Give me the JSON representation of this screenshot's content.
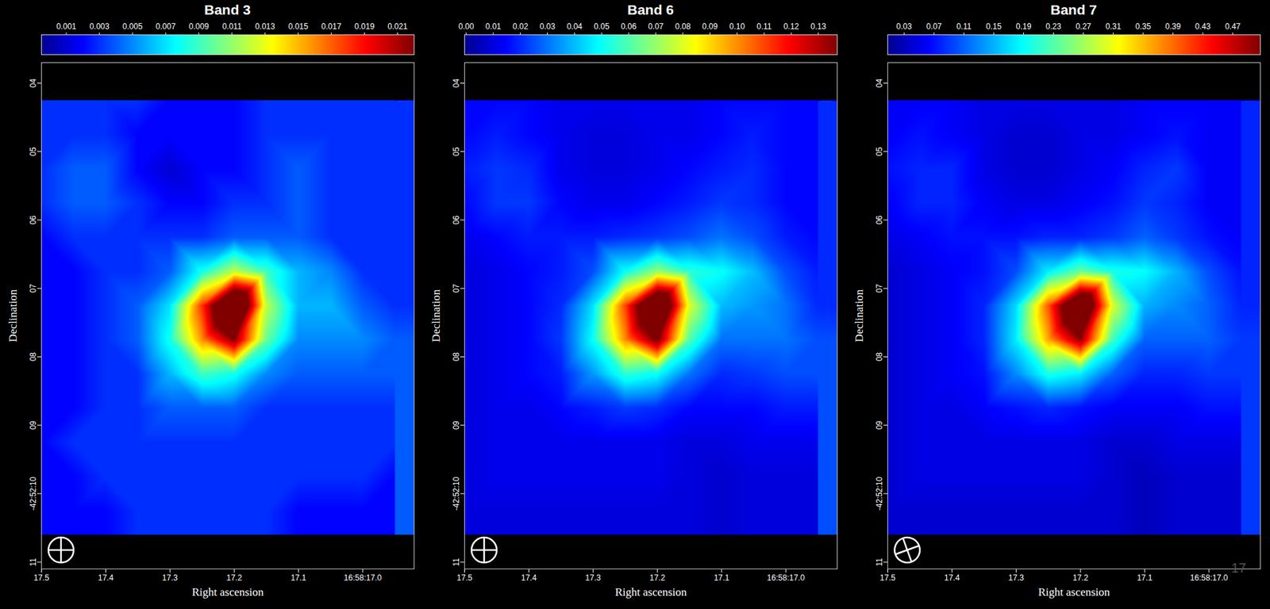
{
  "page_number": "17",
  "chart_data": [
    {
      "type": "heatmap",
      "title": "Band 3",
      "x_label": "Right ascension",
      "y_label": "Declination",
      "xlim": [
        17.5,
        16.92
      ],
      "ylim": [
        11.1,
        3.7
      ],
      "xticks": [
        17.5,
        17.4,
        17.3,
        17.2,
        17.1,
        {
          "value": 17.0,
          "label": "16:58:17.0"
        }
      ],
      "yticks": [
        {
          "value": 4,
          "label": "04"
        },
        {
          "value": 5,
          "label": "05"
        },
        {
          "value": 6,
          "label": "06"
        },
        {
          "value": 7,
          "label": "07"
        },
        {
          "value": 8,
          "label": "08"
        },
        {
          "value": 9,
          "label": "09"
        },
        {
          "value": 10,
          "label": "-42:52:10"
        },
        11
      ],
      "cells": {
        "ra": [
          17.5,
          17.45,
          17.4,
          17.35,
          17.3,
          17.25,
          17.2,
          17.15,
          17.1,
          17.05,
          17.0,
          16.95
        ],
        "dec": [
          4.25,
          4.75,
          5.25,
          5.75,
          6.25,
          6.75,
          7.25,
          7.75,
          8.25,
          8.75,
          9.25,
          9.75,
          10.25,
          10.6
        ],
        "values": [
          [
            0.003,
            0.003,
            0.003,
            0.003,
            0.002,
            0.002,
            0.002,
            0.003,
            0.003,
            0.003,
            0.003,
            0.003
          ],
          [
            0.003,
            0.003,
            0.003,
            0.002,
            0.002,
            0.002,
            0.002,
            0.003,
            0.003,
            0.003,
            0.003,
            0.003
          ],
          [
            0.003,
            0.004,
            0.004,
            0.002,
            0.001,
            0.002,
            0.002,
            0.003,
            0.004,
            0.003,
            0.003,
            0.003
          ],
          [
            0.003,
            0.004,
            0.004,
            0.003,
            0.002,
            0.002,
            0.003,
            0.003,
            0.004,
            0.003,
            0.003,
            0.003
          ],
          [
            0.002,
            0.003,
            0.003,
            0.003,
            0.003,
            0.003,
            0.004,
            0.004,
            0.004,
            0.003,
            0.003,
            0.003
          ],
          [
            0.002,
            0.002,
            0.003,
            0.003,
            0.004,
            0.008,
            0.012,
            0.009,
            0.006,
            0.005,
            0.003,
            0.003
          ],
          [
            0.002,
            0.002,
            0.003,
            0.004,
            0.007,
            0.018,
            0.03,
            0.012,
            0.006,
            0.006,
            0.004,
            0.003
          ],
          [
            0.002,
            0.002,
            0.003,
            0.004,
            0.008,
            0.016,
            0.022,
            0.01,
            0.005,
            0.005,
            0.005,
            0.004
          ],
          [
            0.002,
            0.002,
            0.003,
            0.003,
            0.006,
            0.009,
            0.008,
            0.005,
            0.004,
            0.004,
            0.004,
            0.004
          ],
          [
            0.002,
            0.002,
            0.003,
            0.003,
            0.004,
            0.004,
            0.004,
            0.003,
            0.003,
            0.003,
            0.003,
            0.003
          ],
          [
            0.002,
            0.003,
            0.003,
            0.003,
            0.003,
            0.003,
            0.003,
            0.003,
            0.003,
            0.003,
            0.003,
            0.003
          ],
          [
            0.002,
            0.002,
            0.003,
            0.003,
            0.003,
            0.003,
            0.003,
            0.003,
            0.003,
            0.003,
            0.003,
            0.002
          ],
          [
            0.002,
            0.002,
            0.002,
            0.003,
            0.003,
            0.003,
            0.003,
            0.003,
            0.002,
            0.002,
            0.002,
            0.002
          ],
          [
            0.002,
            0.002,
            0.002,
            0.003,
            0.003,
            0.003,
            0.003,
            0.003,
            0.002,
            0.002,
            0.002,
            0.002
          ]
        ]
      },
      "colorbar": {
        "range": [
          -0.0005,
          0.022
        ],
        "ticks": [
          0.001,
          0.003,
          0.005,
          0.007,
          0.009,
          0.011,
          0.013,
          0.015,
          0.017,
          0.019,
          0.021
        ]
      }
    },
    {
      "type": "heatmap",
      "title": "Band 6",
      "x_label": "Right ascension",
      "y_label": "Declination",
      "xlim": [
        17.5,
        16.92
      ],
      "ylim": [
        11.1,
        3.7
      ],
      "xticks": [
        17.5,
        17.4,
        17.3,
        17.2,
        17.1,
        {
          "value": 17.0,
          "label": "16:58:17.0"
        }
      ],
      "yticks": [
        {
          "value": 4,
          "label": "04"
        },
        {
          "value": 5,
          "label": "05"
        },
        {
          "value": 6,
          "label": "06"
        },
        {
          "value": 7,
          "label": "07"
        },
        {
          "value": 8,
          "label": "08"
        },
        {
          "value": 9,
          "label": "09"
        },
        {
          "value": 10,
          "label": "-42:52:10"
        },
        11
      ],
      "cells": {
        "ra": [
          17.5,
          17.45,
          17.4,
          17.35,
          17.3,
          17.25,
          17.2,
          17.15,
          17.1,
          17.05,
          17.0,
          16.95
        ],
        "dec": [
          4.25,
          4.75,
          5.25,
          5.75,
          6.25,
          6.75,
          7.25,
          7.75,
          8.25,
          8.75,
          9.25,
          9.75,
          10.25,
          10.6
        ],
        "values": [
          [
            0.015,
            0.015,
            0.015,
            0.012,
            0.012,
            0.012,
            0.012,
            0.012,
            0.015,
            0.015,
            0.015,
            0.015
          ],
          [
            0.015,
            0.018,
            0.015,
            0.012,
            0.01,
            0.01,
            0.012,
            0.012,
            0.015,
            0.018,
            0.015,
            0.015
          ],
          [
            0.018,
            0.022,
            0.02,
            0.012,
            0.01,
            0.01,
            0.012,
            0.015,
            0.018,
            0.02,
            0.015,
            0.015
          ],
          [
            0.015,
            0.022,
            0.022,
            0.015,
            0.012,
            0.012,
            0.015,
            0.018,
            0.022,
            0.02,
            0.015,
            0.015
          ],
          [
            0.012,
            0.015,
            0.018,
            0.018,
            0.018,
            0.02,
            0.022,
            0.025,
            0.03,
            0.025,
            0.018,
            0.015
          ],
          [
            0.01,
            0.012,
            0.015,
            0.018,
            0.025,
            0.05,
            0.07,
            0.055,
            0.05,
            0.04,
            0.025,
            0.018
          ],
          [
            0.01,
            0.012,
            0.015,
            0.02,
            0.045,
            0.11,
            0.18,
            0.08,
            0.04,
            0.035,
            0.03,
            0.02
          ],
          [
            0.01,
            0.012,
            0.015,
            0.022,
            0.05,
            0.1,
            0.14,
            0.06,
            0.03,
            0.03,
            0.03,
            0.025
          ],
          [
            0.01,
            0.012,
            0.015,
            0.018,
            0.035,
            0.055,
            0.05,
            0.03,
            0.02,
            0.022,
            0.025,
            0.025
          ],
          [
            0.01,
            0.012,
            0.012,
            0.015,
            0.018,
            0.022,
            0.02,
            0.015,
            0.015,
            0.015,
            0.018,
            0.018
          ],
          [
            0.01,
            0.012,
            0.012,
            0.012,
            0.012,
            0.012,
            0.012,
            0.01,
            0.01,
            0.012,
            0.012,
            0.012
          ],
          [
            0.01,
            0.012,
            0.012,
            0.012,
            0.012,
            0.012,
            0.012,
            0.01,
            0.008,
            0.01,
            0.01,
            0.01
          ],
          [
            0.01,
            0.01,
            0.01,
            0.01,
            0.01,
            0.01,
            0.01,
            0.01,
            0.008,
            0.01,
            0.01,
            0.01
          ],
          [
            0.01,
            0.01,
            0.01,
            0.01,
            0.01,
            0.01,
            0.01,
            0.01,
            0.008,
            0.01,
            0.01,
            0.01
          ]
        ]
      },
      "colorbar": {
        "range": [
          -0.0006,
          0.137
        ],
        "ticks": [
          {
            "value": 0,
            "label": "0.00"
          },
          0.01,
          0.02,
          0.03,
          0.04,
          0.05,
          0.06,
          0.07,
          0.08,
          0.09,
          {
            "value": 0.1,
            "label": "0.10"
          },
          0.11,
          0.12,
          0.13
        ]
      }
    },
    {
      "type": "heatmap",
      "title": "Band 7",
      "x_label": "Right ascension",
      "y_label": "Declination",
      "xlim": [
        17.5,
        16.92
      ],
      "ylim": [
        11.1,
        3.7
      ],
      "xticks": [
        17.5,
        17.4,
        17.3,
        17.2,
        17.1,
        {
          "value": 17.0,
          "label": "16:58:17.0"
        }
      ],
      "yticks": [
        {
          "value": 4,
          "label": "04"
        },
        {
          "value": 5,
          "label": "05"
        },
        {
          "value": 6,
          "label": "06"
        },
        {
          "value": 7,
          "label": "07"
        },
        {
          "value": 8,
          "label": "08"
        },
        {
          "value": 9,
          "label": "09"
        },
        {
          "value": 10,
          "label": "-42:52:10"
        },
        11
      ],
      "cells": {
        "ra": [
          17.5,
          17.45,
          17.4,
          17.35,
          17.3,
          17.25,
          17.2,
          17.15,
          17.1,
          17.05,
          17.0,
          16.95
        ],
        "dec": [
          4.25,
          4.75,
          5.25,
          5.75,
          6.25,
          6.75,
          7.25,
          7.75,
          8.25,
          8.75,
          9.25,
          9.75,
          10.25,
          10.6
        ],
        "values": [
          [
            0.06,
            0.06,
            0.06,
            0.05,
            0.05,
            0.05,
            0.05,
            0.05,
            0.06,
            0.06,
            0.06,
            0.06
          ],
          [
            0.06,
            0.07,
            0.06,
            0.05,
            0.04,
            0.04,
            0.05,
            0.05,
            0.06,
            0.07,
            0.06,
            0.06
          ],
          [
            0.07,
            0.08,
            0.08,
            0.05,
            0.04,
            0.04,
            0.05,
            0.06,
            0.08,
            0.09,
            0.06,
            0.06
          ],
          [
            0.06,
            0.08,
            0.08,
            0.06,
            0.05,
            0.05,
            0.06,
            0.07,
            0.09,
            0.08,
            0.06,
            0.06
          ],
          [
            0.05,
            0.06,
            0.07,
            0.07,
            0.07,
            0.08,
            0.08,
            0.09,
            0.11,
            0.09,
            0.07,
            0.06
          ],
          [
            0.04,
            0.05,
            0.06,
            0.07,
            0.1,
            0.18,
            0.24,
            0.2,
            0.19,
            0.15,
            0.1,
            0.07
          ],
          [
            0.04,
            0.05,
            0.06,
            0.08,
            0.17,
            0.4,
            0.65,
            0.3,
            0.15,
            0.13,
            0.11,
            0.08
          ],
          [
            0.04,
            0.05,
            0.06,
            0.08,
            0.18,
            0.36,
            0.5,
            0.22,
            0.11,
            0.11,
            0.11,
            0.09
          ],
          [
            0.04,
            0.05,
            0.06,
            0.07,
            0.13,
            0.2,
            0.18,
            0.11,
            0.08,
            0.08,
            0.09,
            0.09
          ],
          [
            0.04,
            0.05,
            0.05,
            0.06,
            0.07,
            0.08,
            0.07,
            0.06,
            0.06,
            0.06,
            0.07,
            0.07
          ],
          [
            0.04,
            0.05,
            0.05,
            0.05,
            0.05,
            0.05,
            0.05,
            0.04,
            0.04,
            0.05,
            0.05,
            0.05
          ],
          [
            0.04,
            0.05,
            0.05,
            0.05,
            0.05,
            0.05,
            0.05,
            0.04,
            0.03,
            0.04,
            0.04,
            0.04
          ],
          [
            0.04,
            0.04,
            0.04,
            0.04,
            0.04,
            0.04,
            0.04,
            0.04,
            0.03,
            0.04,
            0.04,
            0.04
          ],
          [
            0.04,
            0.04,
            0.04,
            0.04,
            0.04,
            0.04,
            0.04,
            0.04,
            0.03,
            0.04,
            0.04,
            0.04
          ]
        ]
      },
      "colorbar": {
        "range": [
          0.008,
          0.507
        ],
        "ticks": [
          0.03,
          0.07,
          0.11,
          0.15,
          0.19,
          0.23,
          0.27,
          0.31,
          0.35,
          0.39,
          0.43,
          0.47
        ]
      }
    }
  ]
}
